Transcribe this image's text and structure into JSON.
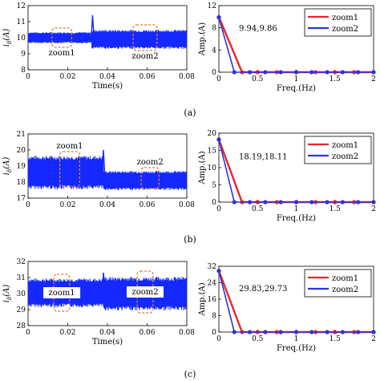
{
  "colors": {
    "signal": "#1428ff",
    "zoom1": "#e8262b",
    "zoom2": "#2b35d8",
    "zoom_box": "#e07b39",
    "axis": "#000000"
  },
  "captions": [
    "(a)",
    "(b)",
    "(c)"
  ],
  "chart_data": [
    {
      "type": "line",
      "panel": "a-time",
      "xlabel": "Time(s)",
      "ylabel": "i_δ(A)",
      "xlim": [
        0,
        0.08
      ],
      "ylim": [
        8,
        12
      ],
      "xticks": [
        "0",
        "0.02",
        "0.04",
        "0.06",
        "0.08"
      ],
      "yticks": [
        "8",
        "9",
        "10",
        "11",
        "12"
      ],
      "series": [
        {
          "segments": [
            {
              "x": [
                0,
                0.032
              ],
              "mean": 10.0,
              "amp": 0.35
            },
            {
              "x": [
                0.032,
                0.08
              ],
              "mean": 9.9,
              "amp": 0.6
            }
          ],
          "transient": {
            "x": 0.0325,
            "peak": 11.4
          }
        }
      ],
      "zooms": [
        {
          "label": "zoom1",
          "x": [
            0.012,
            0.022
          ],
          "y": [
            9.4,
            10.6
          ]
        },
        {
          "label": "zoom2",
          "x": [
            0.053,
            0.065
          ],
          "y": [
            9.2,
            10.8
          ]
        }
      ]
    },
    {
      "type": "line",
      "panel": "a-fft",
      "xlabel": "Freq.(Hz)",
      "ylabel": "Amp.(A)",
      "xlim": [
        0,
        2
      ],
      "ylim": [
        0,
        12
      ],
      "xticks": [
        "0",
        "0.5",
        "1",
        "1.5",
        "2"
      ],
      "yticks": [
        "0",
        "4",
        "8",
        "12"
      ],
      "annotation": "9.94,9.86",
      "series": [
        {
          "name": "zoom1",
          "x": [
            0,
            0.3,
            0.5,
            0.75,
            1.0,
            1.25,
            1.5,
            1.75,
            2.0
          ],
          "values": [
            9.94,
            0,
            0,
            0,
            0,
            0,
            0,
            0,
            0
          ]
        },
        {
          "name": "zoom2",
          "x": [
            0,
            0.2,
            0.4,
            0.6,
            0.8,
            1.0,
            1.2,
            1.4,
            1.6,
            1.8,
            2.0
          ],
          "values": [
            9.86,
            0,
            0,
            0,
            0,
            0,
            0,
            0,
            0,
            0,
            0
          ]
        }
      ]
    },
    {
      "type": "line",
      "panel": "b-time",
      "xlabel": "",
      "ylabel": "i_δ(A)",
      "xlim": [
        0,
        0.08
      ],
      "ylim": [
        17,
        21
      ],
      "xticks": [
        "0",
        "0.02",
        "0.04",
        "0.06",
        "0.08"
      ],
      "yticks": [
        "17",
        "18",
        "19",
        "20",
        "21"
      ],
      "series": [
        {
          "segments": [
            {
              "x": [
                0,
                0.038
              ],
              "mean": 18.6,
              "amp": 1.05
            },
            {
              "x": [
                0.038,
                0.08
              ],
              "mean": 18.1,
              "amp": 0.6
            }
          ],
          "transient": {
            "x": 0.038,
            "peak": 20.0
          }
        }
      ],
      "zooms": [
        {
          "label": "zoom1",
          "x": [
            0.016,
            0.026
          ],
          "y": [
            17.7,
            19.9
          ]
        },
        {
          "label": "zoom2",
          "x": [
            0.057,
            0.066
          ],
          "y": [
            17.6,
            18.9
          ]
        }
      ]
    },
    {
      "type": "line",
      "panel": "b-fft",
      "xlabel": "Freq.(Hz)",
      "ylabel": "Amp.(A)",
      "xlim": [
        0,
        2
      ],
      "ylim": [
        0,
        20
      ],
      "xticks": [
        "0",
        "0.5",
        "1",
        "1.5",
        "2"
      ],
      "yticks": [
        "0",
        "5",
        "10",
        "15",
        "20"
      ],
      "annotation": "18.19,18.11",
      "series": [
        {
          "name": "zoom1",
          "x": [
            0,
            0.3,
            0.5,
            0.75,
            1.0,
            1.25,
            1.5,
            1.75,
            2.0
          ],
          "values": [
            18.19,
            0,
            0,
            0,
            0,
            0,
            0,
            0,
            0
          ]
        },
        {
          "name": "zoom2",
          "x": [
            0,
            0.2,
            0.4,
            0.6,
            0.8,
            1.0,
            1.2,
            1.4,
            1.6,
            1.8,
            2.0
          ],
          "values": [
            18.11,
            0,
            0,
            0,
            0,
            0,
            0,
            0,
            0,
            0,
            0
          ]
        }
      ]
    },
    {
      "type": "line",
      "panel": "c-time",
      "xlabel": "Time(s)",
      "ylabel": "i_δ(A)",
      "xlim": [
        0,
        0.08
      ],
      "ylim": [
        28,
        32
      ],
      "xticks": [
        "0",
        "0.02",
        "0.04",
        "0.06",
        "0.08"
      ],
      "yticks": [
        "28",
        "29",
        "30",
        "31",
        "32"
      ],
      "series": [
        {
          "segments": [
            {
              "x": [
                0,
                0.038
              ],
              "mean": 30.05,
              "amp": 0.9
            },
            {
              "x": [
                0.038,
                0.08
              ],
              "mean": 30.0,
              "amp": 1.05
            }
          ],
          "transient": {
            "x": 0.038,
            "peak": 31.3
          }
        }
      ],
      "zooms": [
        {
          "label": "zoom1",
          "x": [
            0.013,
            0.021
          ],
          "y": [
            28.9,
            31.2
          ]
        },
        {
          "label": "zoom2",
          "x": [
            0.055,
            0.063
          ],
          "y": [
            28.8,
            31.4
          ]
        }
      ]
    },
    {
      "type": "line",
      "panel": "c-fft",
      "xlabel": "Freq.(Hz)",
      "ylabel": "Amp.(A)",
      "xlim": [
        0,
        2
      ],
      "ylim": [
        0,
        32
      ],
      "xticks": [
        "0",
        "0.5",
        "1",
        "1.5",
        "2"
      ],
      "yticks": [
        "0",
        "8",
        "16",
        "24",
        "32"
      ],
      "annotation": "29.83,29.73",
      "series": [
        {
          "name": "zoom1",
          "x": [
            0,
            0.3,
            0.5,
            0.75,
            1.0,
            1.25,
            1.5,
            1.75,
            2.0
          ],
          "values": [
            29.83,
            0,
            0,
            0,
            0,
            0,
            0,
            0,
            0
          ]
        },
        {
          "name": "zoom2",
          "x": [
            0,
            0.2,
            0.4,
            0.6,
            0.8,
            1.0,
            1.2,
            1.4,
            1.6,
            1.8,
            2.0
          ],
          "values": [
            29.73,
            0,
            0,
            0,
            0,
            0,
            0,
            0,
            0,
            0,
            0
          ]
        }
      ]
    }
  ]
}
